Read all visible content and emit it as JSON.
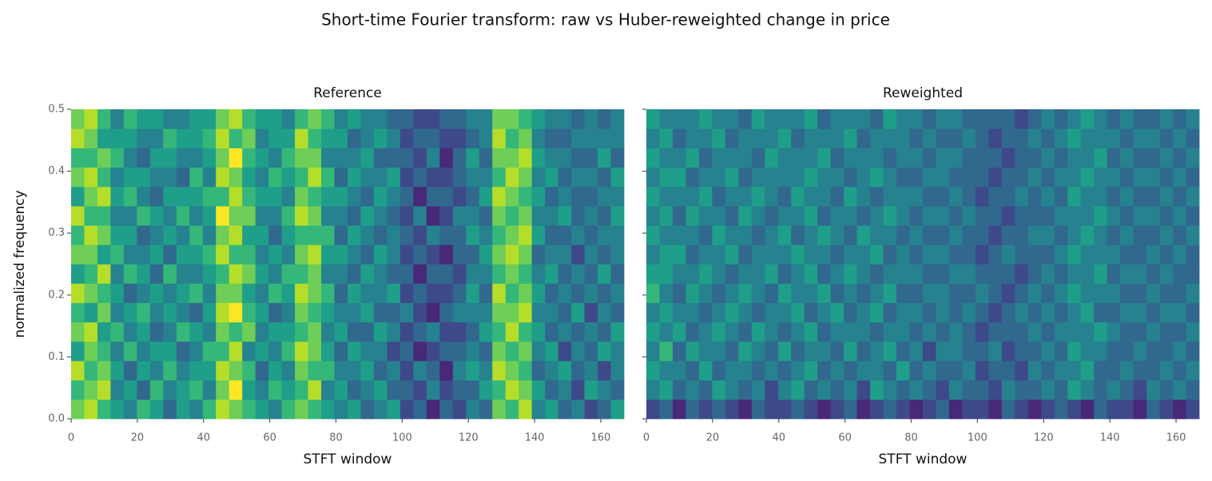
{
  "title": "Short-time Fourier transform: raw vs Huber-reweighted change in price",
  "chart_data": [
    {
      "type": "heatmap",
      "title": "Reference",
      "xlabel": "STFT window",
      "ylabel": "normalized frequency",
      "xlim": [
        0,
        167
      ],
      "ylim": [
        0,
        0.5
      ],
      "xticks": [
        0,
        20,
        40,
        60,
        80,
        100,
        120,
        140,
        160
      ],
      "yticks": [
        {
          "value": 0,
          "label": "0.0"
        },
        0.1,
        0.2,
        0.3,
        0.4,
        0.5
      ],
      "colormap": "viridis",
      "zlim": [
        0,
        9
      ],
      "z": [
        [
          7,
          8,
          6,
          5,
          4,
          6,
          5,
          3,
          5,
          4,
          6,
          8,
          7,
          6,
          5,
          4,
          6,
          7,
          6,
          5,
          4,
          5,
          3,
          4,
          5,
          2,
          3,
          1,
          3,
          2,
          4,
          3,
          7,
          6,
          8,
          4,
          5,
          3,
          4,
          2,
          3,
          5
        ],
        [
          6,
          7,
          8,
          4,
          5,
          3,
          6,
          4,
          5,
          6,
          4,
          7,
          9,
          5,
          4,
          6,
          5,
          6,
          8,
          4,
          5,
          3,
          4,
          5,
          3,
          3,
          2,
          4,
          2,
          3,
          3,
          5,
          6,
          8,
          7,
          5,
          3,
          4,
          2,
          5,
          4,
          3
        ],
        [
          8,
          6,
          7,
          5,
          3,
          5,
          4,
          6,
          4,
          5,
          5,
          8,
          7,
          6,
          3,
          5,
          4,
          7,
          6,
          6,
          4,
          4,
          5,
          3,
          4,
          2,
          4,
          3,
          1,
          4,
          5,
          4,
          8,
          7,
          6,
          3,
          4,
          5,
          3,
          4,
          2,
          4
        ],
        [
          5,
          7,
          6,
          4,
          6,
          4,
          5,
          5,
          3,
          4,
          6,
          6,
          8,
          4,
          5,
          4,
          6,
          8,
          7,
          5,
          3,
          5,
          4,
          4,
          2,
          3,
          1,
          2,
          3,
          3,
          4,
          3,
          7,
          6,
          7,
          4,
          5,
          2,
          4,
          3,
          5,
          4
        ],
        [
          7,
          8,
          5,
          6,
          4,
          5,
          3,
          4,
          6,
          5,
          4,
          7,
          6,
          7,
          4,
          5,
          5,
          6,
          7,
          4,
          5,
          3,
          3,
          5,
          4,
          2,
          3,
          4,
          2,
          2,
          3,
          5,
          6,
          8,
          6,
          5,
          3,
          4,
          3,
          4,
          3,
          5
        ],
        [
          6,
          5,
          7,
          4,
          5,
          6,
          4,
          5,
          4,
          3,
          5,
          8,
          9,
          6,
          5,
          3,
          4,
          7,
          6,
          5,
          4,
          4,
          5,
          3,
          3,
          4,
          2,
          1,
          3,
          4,
          4,
          4,
          7,
          7,
          8,
          4,
          4,
          3,
          5,
          2,
          4,
          3
        ],
        [
          8,
          7,
          6,
          5,
          3,
          4,
          5,
          4,
          5,
          6,
          4,
          7,
          7,
          5,
          4,
          6,
          5,
          8,
          7,
          6,
          3,
          5,
          4,
          4,
          5,
          2,
          3,
          2,
          2,
          3,
          5,
          3,
          8,
          6,
          7,
          5,
          3,
          4,
          3,
          4,
          3,
          4
        ],
        [
          5,
          6,
          8,
          4,
          6,
          5,
          3,
          6,
          4,
          4,
          5,
          6,
          8,
          7,
          5,
          4,
          6,
          6,
          7,
          4,
          4,
          3,
          5,
          4,
          3,
          3,
          1,
          3,
          3,
          2,
          4,
          4,
          6,
          7,
          6,
          4,
          5,
          3,
          4,
          3,
          5,
          3
        ],
        [
          7,
          7,
          5,
          6,
          4,
          4,
          5,
          3,
          5,
          5,
          6,
          8,
          6,
          6,
          4,
          5,
          4,
          7,
          8,
          5,
          5,
          4,
          3,
          5,
          4,
          2,
          3,
          2,
          1,
          3,
          3,
          5,
          7,
          8,
          7,
          3,
          4,
          4,
          2,
          4,
          3,
          4
        ],
        [
          6,
          8,
          7,
          5,
          5,
          3,
          4,
          5,
          4,
          6,
          4,
          7,
          8,
          5,
          5,
          3,
          5,
          6,
          6,
          6,
          3,
          5,
          4,
          3,
          4,
          3,
          2,
          4,
          3,
          3,
          5,
          4,
          6,
          7,
          8,
          5,
          3,
          3,
          4,
          3,
          4,
          4
        ],
        [
          8,
          6,
          6,
          4,
          4,
          6,
          5,
          4,
          6,
          4,
          5,
          9,
          7,
          7,
          4,
          4,
          6,
          8,
          7,
          4,
          4,
          3,
          5,
          4,
          3,
          2,
          4,
          1,
          2,
          4,
          4,
          3,
          7,
          6,
          7,
          4,
          4,
          5,
          3,
          4,
          3,
          5
        ],
        [
          5,
          7,
          8,
          5,
          6,
          4,
          3,
          5,
          5,
          5,
          6,
          6,
          8,
          6,
          5,
          5,
          4,
          7,
          6,
          5,
          5,
          4,
          3,
          5,
          4,
          3,
          1,
          3,
          3,
          2,
          3,
          5,
          8,
          7,
          6,
          5,
          3,
          4,
          3,
          3,
          4,
          4
        ],
        [
          7,
          8,
          6,
          4,
          5,
          5,
          4,
          4,
          3,
          6,
          4,
          8,
          7,
          5,
          4,
          6,
          5,
          6,
          8,
          6,
          3,
          5,
          4,
          4,
          5,
          2,
          3,
          2,
          2,
          3,
          4,
          4,
          6,
          8,
          7,
          4,
          5,
          3,
          4,
          4,
          3,
          5
        ],
        [
          6,
          6,
          7,
          6,
          4,
          3,
          5,
          5,
          4,
          4,
          5,
          7,
          9,
          6,
          5,
          4,
          6,
          7,
          7,
          4,
          4,
          4,
          5,
          3,
          3,
          3,
          2,
          4,
          1,
          3,
          5,
          3,
          7,
          7,
          8,
          5,
          4,
          4,
          3,
          3,
          5,
          3
        ],
        [
          8,
          7,
          5,
          5,
          5,
          4,
          4,
          6,
          5,
          5,
          6,
          8,
          6,
          7,
          4,
          5,
          5,
          8,
          6,
          5,
          5,
          3,
          4,
          5,
          4,
          2,
          3,
          3,
          2,
          2,
          3,
          4,
          8,
          6,
          7,
          4,
          3,
          3,
          4,
          4,
          4,
          4
        ],
        [
          7,
          8,
          6,
          4,
          6,
          5,
          5,
          4,
          4,
          5,
          5,
          7,
          8,
          6,
          5,
          5,
          4,
          6,
          7,
          6,
          4,
          5,
          4,
          4,
          3,
          3,
          2,
          2,
          3,
          3,
          4,
          4,
          7,
          7,
          6,
          5,
          4,
          4,
          3,
          4,
          3,
          4
        ]
      ]
    },
    {
      "type": "heatmap",
      "title": "Reweighted",
      "xlabel": "STFT window",
      "sharey": true,
      "xlim": [
        0,
        167
      ],
      "ylim": [
        0,
        0.5
      ],
      "xticks": [
        0,
        20,
        40,
        60,
        80,
        100,
        120,
        140,
        160
      ],
      "colormap": "viridis",
      "zlim": [
        0,
        9
      ],
      "z": [
        [
          2,
          3,
          1,
          3,
          2,
          3,
          2,
          1,
          3,
          2,
          2,
          3,
          2,
          1,
          2,
          3,
          1,
          2,
          3,
          2,
          1,
          2,
          3,
          1,
          2,
          2,
          1,
          3,
          2,
          1,
          2,
          3,
          2,
          1,
          3,
          2,
          2,
          1,
          3,
          2,
          1,
          2
        ],
        [
          4,
          5,
          3,
          4,
          3,
          5,
          4,
          3,
          4,
          2,
          4,
          5,
          3,
          4,
          3,
          4,
          2,
          5,
          4,
          3,
          4,
          3,
          2,
          4,
          3,
          3,
          2,
          4,
          3,
          3,
          4,
          3,
          5,
          4,
          3,
          4,
          3,
          2,
          4,
          3,
          4,
          3
        ],
        [
          5,
          4,
          4,
          3,
          5,
          3,
          4,
          4,
          3,
          4,
          3,
          4,
          5,
          3,
          4,
          3,
          4,
          4,
          3,
          5,
          3,
          4,
          3,
          3,
          4,
          2,
          3,
          3,
          2,
          4,
          3,
          4,
          4,
          5,
          3,
          3,
          4,
          3,
          3,
          4,
          3,
          4
        ],
        [
          4,
          6,
          3,
          5,
          4,
          4,
          3,
          5,
          4,
          3,
          5,
          3,
          4,
          4,
          3,
          5,
          3,
          4,
          5,
          3,
          4,
          2,
          4,
          4,
          3,
          3,
          4,
          2,
          3,
          3,
          4,
          3,
          5,
          4,
          4,
          3,
          3,
          4,
          3,
          3,
          4,
          3
        ],
        [
          5,
          4,
          5,
          3,
          4,
          5,
          4,
          3,
          5,
          4,
          3,
          4,
          5,
          3,
          4,
          4,
          4,
          3,
          4,
          4,
          3,
          4,
          3,
          4,
          3,
          2,
          3,
          3,
          3,
          4,
          3,
          4,
          4,
          4,
          5,
          4,
          3,
          3,
          4,
          3,
          3,
          4
        ],
        [
          4,
          5,
          4,
          4,
          3,
          4,
          5,
          4,
          3,
          4,
          4,
          5,
          3,
          4,
          5,
          3,
          4,
          5,
          3,
          4,
          4,
          3,
          4,
          3,
          4,
          3,
          2,
          3,
          4,
          3,
          4,
          3,
          4,
          5,
          3,
          3,
          4,
          4,
          3,
          4,
          4,
          3
        ],
        [
          6,
          4,
          3,
          5,
          4,
          3,
          4,
          5,
          4,
          3,
          5,
          4,
          4,
          5,
          3,
          4,
          3,
          4,
          5,
          3,
          3,
          4,
          4,
          3,
          3,
          4,
          3,
          2,
          3,
          4,
          3,
          4,
          5,
          4,
          4,
          4,
          3,
          3,
          4,
          3,
          3,
          4
        ],
        [
          5,
          5,
          4,
          4,
          5,
          4,
          3,
          4,
          4,
          5,
          3,
          4,
          5,
          3,
          4,
          5,
          4,
          3,
          4,
          4,
          4,
          3,
          3,
          4,
          4,
          3,
          3,
          3,
          2,
          3,
          4,
          3,
          4,
          4,
          5,
          3,
          4,
          4,
          3,
          4,
          3,
          3
        ],
        [
          4,
          5,
          5,
          3,
          4,
          4,
          5,
          3,
          4,
          4,
          4,
          5,
          4,
          4,
          3,
          4,
          4,
          5,
          3,
          4,
          3,
          4,
          4,
          3,
          3,
          2,
          3,
          4,
          3,
          3,
          3,
          4,
          5,
          4,
          4,
          4,
          3,
          3,
          4,
          3,
          4,
          3
        ],
        [
          5,
          4,
          4,
          4,
          3,
          5,
          4,
          4,
          3,
          4,
          5,
          3,
          4,
          5,
          4,
          3,
          5,
          4,
          4,
          3,
          4,
          3,
          3,
          4,
          3,
          3,
          2,
          3,
          3,
          4,
          4,
          3,
          4,
          5,
          4,
          3,
          4,
          3,
          3,
          4,
          3,
          4
        ],
        [
          4,
          5,
          3,
          5,
          4,
          4,
          3,
          5,
          4,
          3,
          4,
          4,
          5,
          3,
          4,
          4,
          3,
          4,
          5,
          4,
          3,
          4,
          4,
          3,
          4,
          3,
          3,
          2,
          3,
          3,
          3,
          4,
          4,
          4,
          5,
          4,
          3,
          4,
          4,
          3,
          4,
          3
        ],
        [
          5,
          4,
          4,
          4,
          5,
          3,
          4,
          4,
          5,
          4,
          3,
          5,
          4,
          4,
          3,
          5,
          4,
          3,
          4,
          4,
          4,
          3,
          3,
          4,
          3,
          2,
          3,
          3,
          4,
          3,
          4,
          3,
          5,
          4,
          4,
          3,
          4,
          3,
          3,
          4,
          3,
          4
        ],
        [
          4,
          5,
          5,
          3,
          4,
          4,
          5,
          3,
          4,
          4,
          4,
          4,
          5,
          4,
          4,
          3,
          4,
          5,
          4,
          3,
          3,
          4,
          4,
          3,
          3,
          3,
          2,
          3,
          3,
          4,
          3,
          4,
          4,
          5,
          4,
          4,
          3,
          4,
          4,
          3,
          4,
          3
        ],
        [
          5,
          4,
          4,
          5,
          3,
          4,
          4,
          4,
          3,
          5,
          4,
          4,
          4,
          5,
          3,
          4,
          4,
          4,
          3,
          4,
          4,
          3,
          4,
          4,
          3,
          3,
          3,
          2,
          3,
          3,
          4,
          3,
          4,
          4,
          5,
          3,
          4,
          3,
          3,
          4,
          3,
          4
        ],
        [
          4,
          5,
          3,
          4,
          4,
          5,
          3,
          4,
          4,
          4,
          5,
          3,
          4,
          4,
          4,
          5,
          3,
          4,
          4,
          4,
          3,
          4,
          3,
          3,
          4,
          3,
          2,
          3,
          3,
          4,
          3,
          4,
          5,
          4,
          4,
          4,
          3,
          4,
          4,
          3,
          4,
          3
        ],
        [
          5,
          4,
          4,
          4,
          5,
          4,
          4,
          3,
          5,
          4,
          4,
          4,
          5,
          3,
          4,
          4,
          4,
          3,
          5,
          4,
          4,
          3,
          4,
          4,
          3,
          3,
          3,
          3,
          2,
          3,
          4,
          3,
          4,
          5,
          4,
          3,
          4,
          3,
          3,
          4,
          3,
          4
        ]
      ]
    }
  ]
}
